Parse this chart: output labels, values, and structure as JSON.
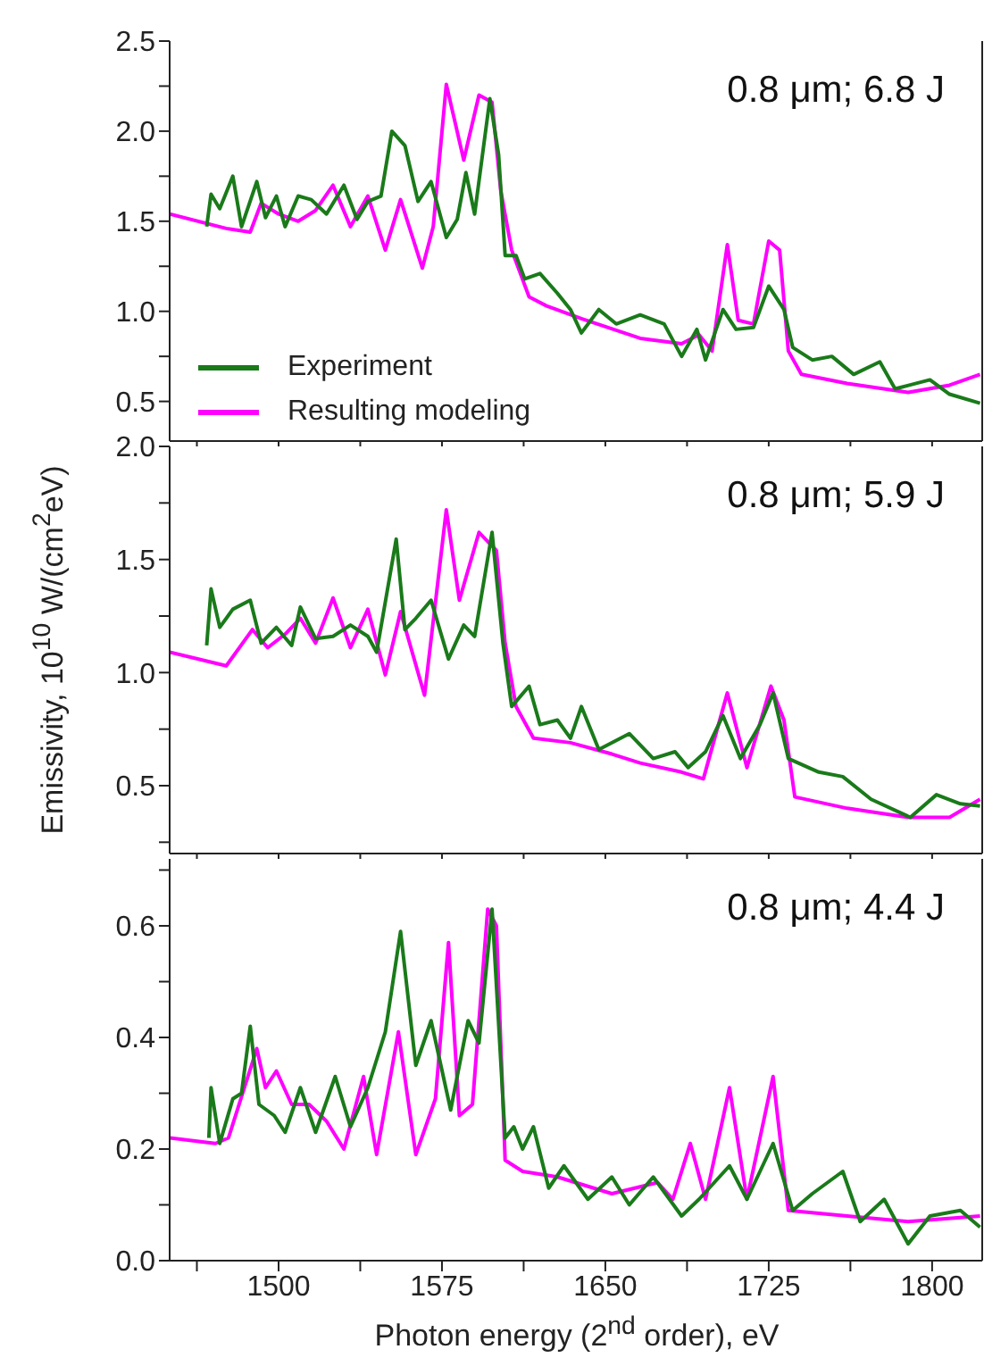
{
  "chart_data": [
    {
      "type": "line",
      "annotations": [
        "0.8 μm; 6.8 J"
      ],
      "legend": "bottom left",
      "tick_labels": "y",
      "xlim": [
        1450,
        1823
      ],
      "xticks": [
        {
          "value": 1462.5,
          "label": null
        },
        1500,
        {
          "value": 1537.5,
          "label": null
        },
        1575,
        {
          "value": 1612.5,
          "label": null
        },
        1650,
        {
          "value": 1687.5,
          "label": null
        },
        1725,
        {
          "value": 1762.5,
          "label": null
        },
        1800
      ],
      "ylim": [
        0.28,
        2.5
      ],
      "yticks": [
        {
          "value": 0.5,
          "label": "0.5"
        },
        {
          "value": 0.75,
          "label": null
        },
        {
          "value": 1,
          "label": "1.0"
        },
        {
          "value": 1.25,
          "label": null
        },
        {
          "value": 1.5,
          "label": "1.5"
        },
        {
          "value": 1.75,
          "label": null
        },
        {
          "value": 2,
          "label": "2.0"
        },
        {
          "value": 2.25,
          "label": null
        },
        {
          "value": 2.5,
          "label": "2.5"
        }
      ],
      "series": [
        {
          "name": "Resulting modeling",
          "color": "#ff00ff",
          "x": [
            1450,
            1476,
            1487,
            1492,
            1500,
            1509,
            1517,
            1525,
            1533,
            1541,
            1549,
            1556,
            1566,
            1571,
            1577,
            1585,
            1592,
            1598,
            1602,
            1607,
            1615,
            1623,
            1639,
            1666,
            1685,
            1693,
            1699,
            1706,
            1711,
            1718,
            1725,
            1730,
            1734,
            1740,
            1761,
            1789,
            1808,
            1822
          ],
          "values": [
            1.54,
            1.46,
            1.44,
            1.6,
            1.54,
            1.5,
            1.56,
            1.7,
            1.47,
            1.64,
            1.34,
            1.62,
            1.24,
            1.47,
            2.26,
            1.84,
            2.2,
            2.16,
            1.67,
            1.34,
            1.08,
            1.03,
            0.96,
            0.85,
            0.82,
            0.87,
            0.78,
            1.37,
            0.95,
            0.93,
            1.39,
            1.34,
            0.78,
            0.65,
            0.6,
            0.55,
            0.59,
            0.65
          ]
        },
        {
          "name": "Experiment",
          "color": "#1a7a1a",
          "x": [
            1467,
            1469,
            1473,
            1479,
            1483,
            1490,
            1494,
            1499,
            1503,
            1509,
            1515,
            1522,
            1530,
            1536,
            1541,
            1547,
            1552,
            1558,
            1564,
            1570,
            1577,
            1582,
            1586,
            1590,
            1597,
            1601,
            1604,
            1609,
            1613,
            1620,
            1628,
            1634,
            1639,
            1647,
            1655,
            1666,
            1677,
            1685,
            1692,
            1696,
            1704,
            1710,
            1718,
            1725,
            1732,
            1736,
            1745,
            1754,
            1764,
            1776,
            1783,
            1799,
            1808,
            1822
          ],
          "values": [
            1.47,
            1.65,
            1.57,
            1.75,
            1.47,
            1.72,
            1.52,
            1.64,
            1.47,
            1.64,
            1.62,
            1.54,
            1.7,
            1.51,
            1.61,
            1.64,
            2.0,
            1.92,
            1.61,
            1.72,
            1.41,
            1.51,
            1.77,
            1.54,
            2.18,
            1.87,
            1.31,
            1.31,
            1.18,
            1.21,
            1.1,
            1.01,
            0.88,
            1.01,
            0.93,
            0.98,
            0.93,
            0.75,
            0.9,
            0.73,
            1.01,
            0.9,
            0.91,
            1.14,
            1.01,
            0.8,
            0.73,
            0.75,
            0.65,
            0.72,
            0.57,
            0.62,
            0.54,
            0.49
          ]
        }
      ]
    },
    {
      "type": "line",
      "annotations": [
        "0.8 μm; 5.9 J"
      ],
      "ylabel": "Emissivity, 10$^{10}$ W/(cm$^{2}$eV)",
      "tick_labels": "y",
      "xlim": [
        1450,
        1823
      ],
      "xticks": [
        {
          "value": 1462.5,
          "label": null
        },
        1500,
        {
          "value": 1537.5,
          "label": null
        },
        1575,
        {
          "value": 1612.5,
          "label": null
        },
        1650,
        {
          "value": 1687.5,
          "label": null
        },
        1725,
        {
          "value": 1762.5,
          "label": null
        },
        1800
      ],
      "ylim": [
        0.2,
        2.0
      ],
      "yticks": [
        {
          "value": 0.25,
          "label": null
        },
        {
          "value": 0.5,
          "label": "0.5"
        },
        {
          "value": 0.75,
          "label": null
        },
        {
          "value": 1,
          "label": "1.0"
        },
        {
          "value": 1.25,
          "label": null
        },
        {
          "value": 1.5,
          "label": "1.5"
        },
        {
          "value": 1.75,
          "label": null
        },
        {
          "value": 2,
          "label": "2.0"
        }
      ],
      "series": [
        {
          "color": "#ff00ff",
          "x": [
            1450,
            1476,
            1488,
            1495,
            1503,
            1510,
            1517,
            1525,
            1533,
            1541,
            1549,
            1556,
            1567,
            1577,
            1583,
            1592,
            1600,
            1604,
            1609,
            1617,
            1634,
            1653,
            1666,
            1685,
            1695,
            1706,
            1715,
            1726,
            1732,
            1737,
            1761,
            1789,
            1808,
            1822
          ],
          "values": [
            1.09,
            1.03,
            1.19,
            1.11,
            1.17,
            1.24,
            1.13,
            1.33,
            1.11,
            1.28,
            0.99,
            1.27,
            0.9,
            1.72,
            1.32,
            1.62,
            1.54,
            1.13,
            0.85,
            0.71,
            0.69,
            0.64,
            0.6,
            0.56,
            0.53,
            0.91,
            0.58,
            0.94,
            0.79,
            0.45,
            0.4,
            0.36,
            0.36,
            0.44
          ]
        },
        {
          "color": "#1a7a1a",
          "x": [
            1467,
            1469,
            1473,
            1479,
            1487,
            1492,
            1499,
            1506,
            1510,
            1517,
            1525,
            1533,
            1541,
            1545,
            1554,
            1558,
            1563,
            1570,
            1578,
            1585,
            1590,
            1598,
            1603,
            1607,
            1615,
            1620,
            1628,
            1634,
            1639,
            1647,
            1661,
            1672,
            1682,
            1688,
            1696,
            1704,
            1712,
            1721,
            1727,
            1734,
            1748,
            1759,
            1772,
            1790,
            1802,
            1813,
            1822
          ],
          "values": [
            1.12,
            1.37,
            1.2,
            1.28,
            1.32,
            1.13,
            1.2,
            1.12,
            1.29,
            1.15,
            1.16,
            1.21,
            1.16,
            1.09,
            1.59,
            1.19,
            1.24,
            1.32,
            1.06,
            1.21,
            1.16,
            1.62,
            1.13,
            0.85,
            0.94,
            0.77,
            0.79,
            0.71,
            0.85,
            0.66,
            0.73,
            0.62,
            0.65,
            0.58,
            0.65,
            0.81,
            0.62,
            0.77,
            0.91,
            0.62,
            0.56,
            0.54,
            0.44,
            0.36,
            0.46,
            0.42,
            0.41
          ]
        }
      ]
    },
    {
      "type": "line",
      "annotations": [
        "0.8 μm; 4.4 J"
      ],
      "xlabel": "Photon energy (2$^{nd}$ order), eV",
      "xlim": [
        1450,
        1823
      ],
      "xticks": [
        {
          "value": 1462.5,
          "label": null
        },
        1500,
        {
          "value": 1537.5,
          "label": null
        },
        1575,
        {
          "value": 1612.5,
          "label": null
        },
        1650,
        {
          "value": 1687.5,
          "label": null
        },
        1725,
        {
          "value": 1762.5,
          "label": null
        },
        1800
      ],
      "ylim": [
        0,
        0.72
      ],
      "yticks": [
        {
          "value": 0,
          "label": "0.0"
        },
        {
          "value": 0.1,
          "label": null
        },
        {
          "value": 0.2,
          "label": "0.2"
        },
        {
          "value": 0.3,
          "label": null
        },
        {
          "value": 0.4,
          "label": "0.4"
        },
        {
          "value": 0.5,
          "label": null
        },
        {
          "value": 0.6,
          "label": "0.6"
        },
        {
          "value": 0.7,
          "label": null
        }
      ],
      "series": [
        {
          "color": "#ff00ff",
          "x": [
            1450,
            1471,
            1477,
            1490,
            1494,
            1499,
            1506,
            1514,
            1522,
            1530,
            1539,
            1545,
            1555,
            1563,
            1572,
            1578,
            1583,
            1589,
            1596,
            1600,
            1604,
            1612,
            1628,
            1653,
            1674,
            1681,
            1689,
            1696,
            1707,
            1715,
            1727,
            1734,
            1761,
            1789,
            1822
          ],
          "values": [
            0.22,
            0.21,
            0.22,
            0.38,
            0.31,
            0.34,
            0.28,
            0.28,
            0.25,
            0.2,
            0.33,
            0.19,
            0.41,
            0.19,
            0.29,
            0.57,
            0.26,
            0.28,
            0.63,
            0.6,
            0.18,
            0.16,
            0.15,
            0.12,
            0.14,
            0.11,
            0.21,
            0.11,
            0.31,
            0.11,
            0.33,
            0.09,
            0.08,
            0.07,
            0.08
          ]
        },
        {
          "color": "#1a7a1a",
          "x": [
            1468,
            1469,
            1473,
            1479,
            1483,
            1487,
            1491,
            1498,
            1503,
            1510,
            1517,
            1526,
            1533,
            1541,
            1549,
            1556,
            1563,
            1570,
            1579,
            1587,
            1592,
            1598,
            1604,
            1608,
            1612,
            1617,
            1624,
            1631,
            1642,
            1653,
            1661,
            1672,
            1685,
            1693,
            1707,
            1715,
            1727,
            1736,
            1745,
            1759,
            1767,
            1778,
            1789,
            1799,
            1813,
            1822
          ],
          "values": [
            0.22,
            0.31,
            0.21,
            0.29,
            0.3,
            0.42,
            0.28,
            0.26,
            0.23,
            0.31,
            0.23,
            0.33,
            0.24,
            0.31,
            0.41,
            0.59,
            0.35,
            0.43,
            0.27,
            0.43,
            0.39,
            0.63,
            0.22,
            0.24,
            0.2,
            0.24,
            0.13,
            0.17,
            0.11,
            0.15,
            0.1,
            0.15,
            0.08,
            0.11,
            0.17,
            0.11,
            0.21,
            0.09,
            0.12,
            0.16,
            0.07,
            0.11,
            0.03,
            0.08,
            0.09,
            0.06
          ]
        }
      ]
    }
  ]
}
